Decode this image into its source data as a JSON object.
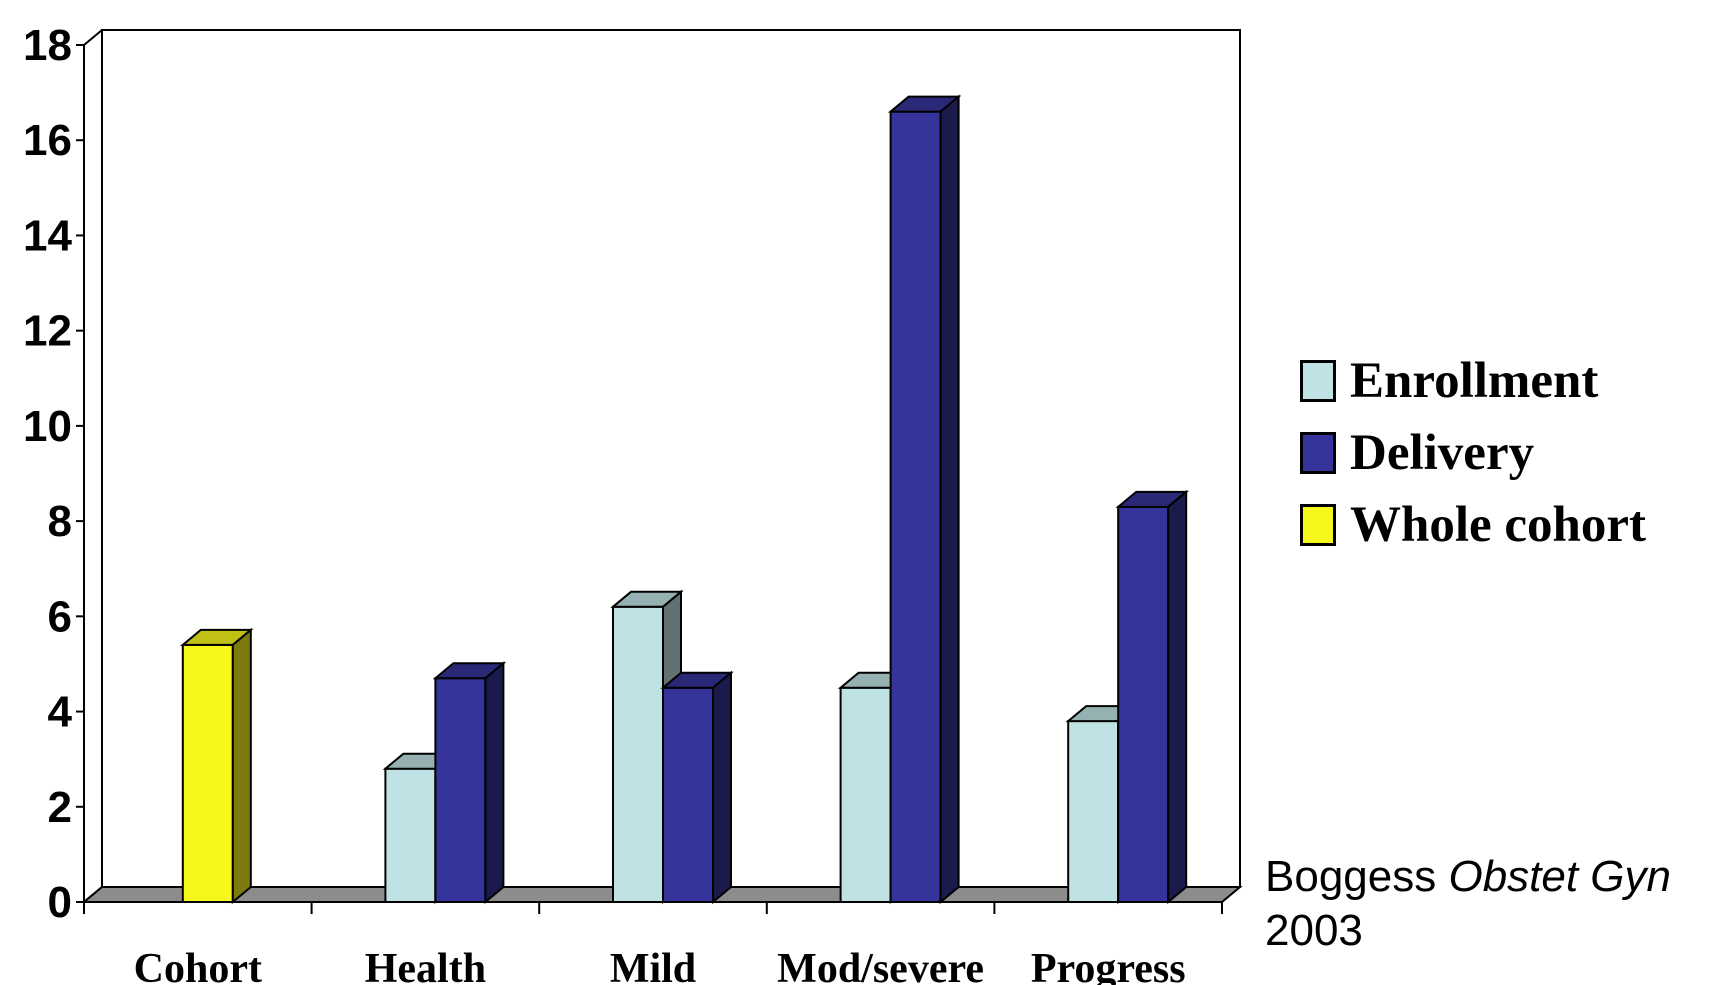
{
  "chart_data": {
    "type": "bar",
    "categories": [
      "Cohort",
      "Health",
      "Mild",
      "Mod/severe",
      "Progress"
    ],
    "series": [
      {
        "name": "Enrollment",
        "values": [
          null,
          2.8,
          6.2,
          4.5,
          3.8
        ],
        "color": "#bfe3e4"
      },
      {
        "name": "Delivery",
        "values": [
          null,
          4.7,
          4.5,
          16.6,
          8.3
        ],
        "color": "#35349a"
      },
      {
        "name": "Whole cohort",
        "values": [
          5.4,
          null,
          null,
          null,
          null
        ],
        "color": "#f6f71a"
      }
    ],
    "ylim": [
      0,
      18
    ],
    "yticks": [
      0,
      2,
      4,
      6,
      8,
      10,
      12,
      14,
      16,
      18
    ],
    "legend_position": "right",
    "grid": false,
    "style": "3d-column"
  },
  "legend": {
    "items": [
      {
        "label": "Enrollment",
        "color": "#bfe3e4"
      },
      {
        "label": "Delivery",
        "color": "#35349a"
      },
      {
        "label": "Whole cohort",
        "color": "#f6f71a"
      }
    ]
  },
  "citation": {
    "author": "Boggess",
    "journal": "Obstet Gyn",
    "year": "2003"
  }
}
